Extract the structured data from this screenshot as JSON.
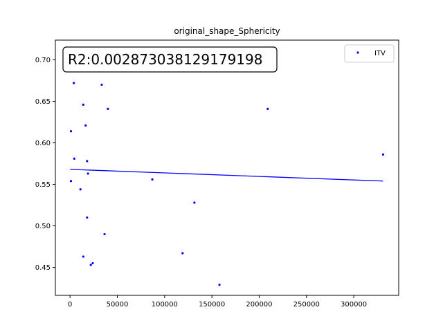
{
  "chart_data": {
    "type": "scatter",
    "title": "original_shape_Sphericity",
    "xlabel": "",
    "ylabel": "",
    "xlim": [
      -15500,
      347500
    ],
    "ylim": [
      0.4163,
      0.7238
    ],
    "xticks": [
      0,
      50000,
      100000,
      150000,
      200000,
      250000,
      300000
    ],
    "xtick_labels": [
      "0",
      "50000",
      "100000",
      "150000",
      "200000",
      "250000",
      "300000"
    ],
    "yticks": [
      0.45,
      0.5,
      0.55,
      0.6,
      0.65,
      0.7
    ],
    "ytick_labels": [
      "0.45",
      "0.50",
      "0.55",
      "0.60",
      "0.65",
      "0.70"
    ],
    "grid": false,
    "legend_position": "top-right",
    "annotation": "R2:0.002873038129179198",
    "series": [
      {
        "name": "ITV",
        "color": "#0000ff",
        "points": [
          {
            "x": 1000,
            "y": 0.614
          },
          {
            "x": 1000,
            "y": 0.554
          },
          {
            "x": 4000,
            "y": 0.672
          },
          {
            "x": 4500,
            "y": 0.581
          },
          {
            "x": 11000,
            "y": 0.544
          },
          {
            "x": 14000,
            "y": 0.646
          },
          {
            "x": 14000,
            "y": 0.463
          },
          {
            "x": 16500,
            "y": 0.621
          },
          {
            "x": 18000,
            "y": 0.578
          },
          {
            "x": 18000,
            "y": 0.51
          },
          {
            "x": 19000,
            "y": 0.563
          },
          {
            "x": 22000,
            "y": 0.453
          },
          {
            "x": 24000,
            "y": 0.455
          },
          {
            "x": 33500,
            "y": 0.67
          },
          {
            "x": 36500,
            "y": 0.49
          },
          {
            "x": 40000,
            "y": 0.641
          },
          {
            "x": 87000,
            "y": 0.556
          },
          {
            "x": 119000,
            "y": 0.467
          },
          {
            "x": 131500,
            "y": 0.528
          },
          {
            "x": 158000,
            "y": 0.429
          },
          {
            "x": 209000,
            "y": 0.641
          },
          {
            "x": 331000,
            "y": 0.586
          }
        ]
      }
    ],
    "fit_line": {
      "color": "#0000ff",
      "points": [
        {
          "x": 0,
          "y": 0.5681
        },
        {
          "x": 331000,
          "y": 0.554
        }
      ]
    }
  }
}
